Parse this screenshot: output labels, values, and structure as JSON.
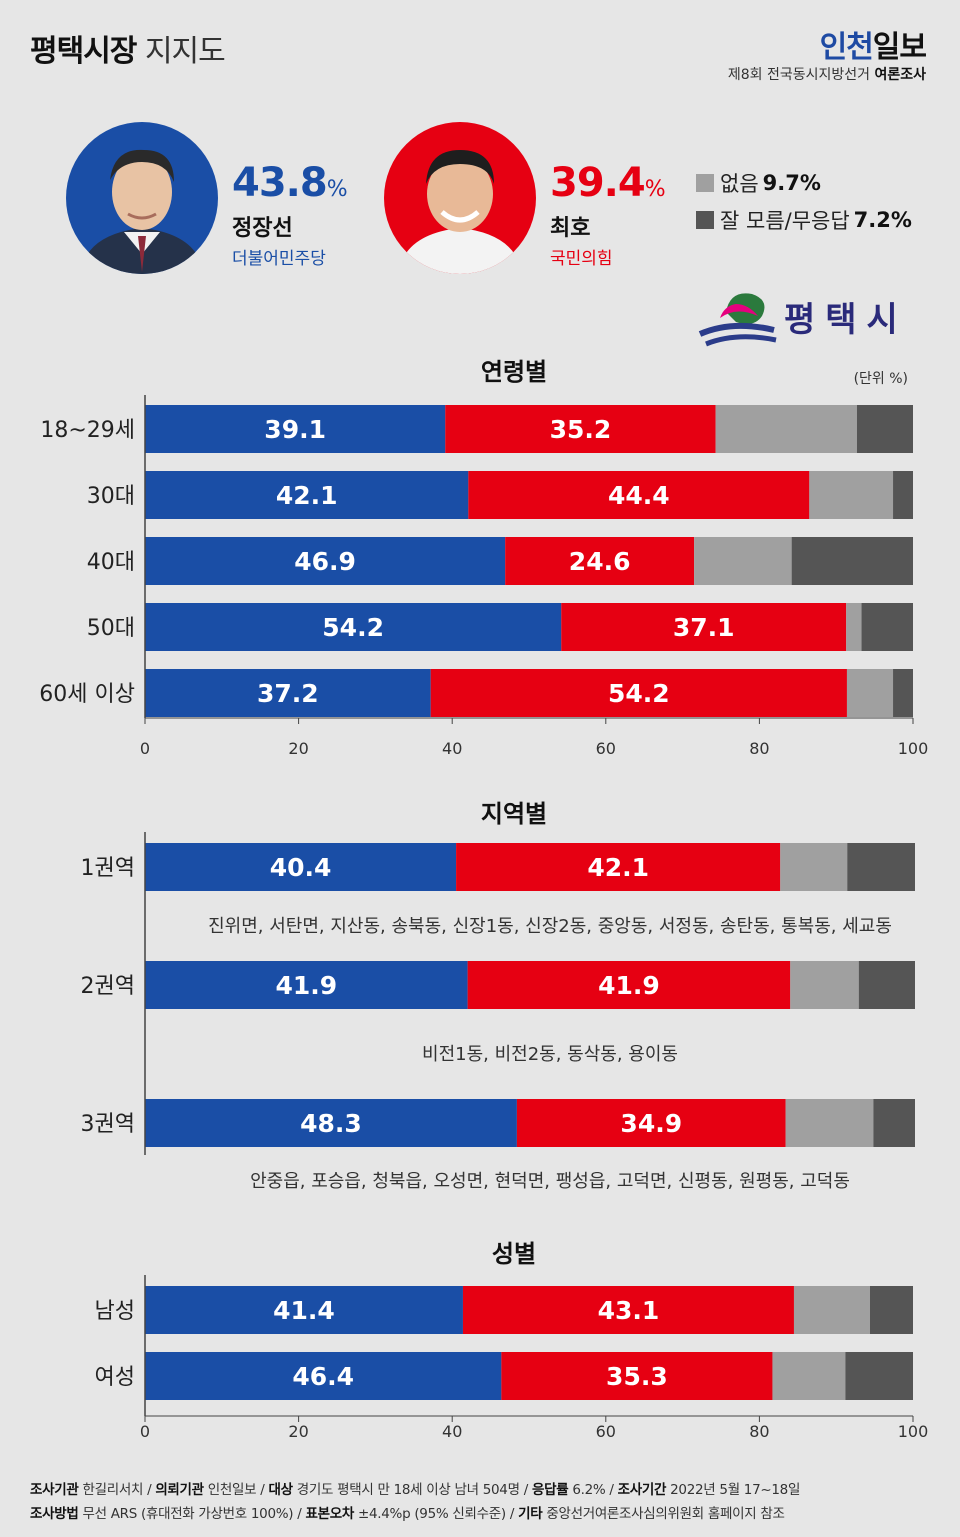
{
  "header": {
    "title_bold": "평택시장",
    "title_rest": "지지도",
    "brand_part1": "인천",
    "brand_part2": "일보",
    "survey_note": "제8회 전국동시지방선거",
    "survey_note_bold": "여론조사"
  },
  "candidates": [
    {
      "name": "정장선",
      "party": "더불어민주당",
      "pct": "43.8",
      "pct_unit": "%",
      "color": "#1a4ea6"
    },
    {
      "name": "최호",
      "party": "국민의힘",
      "pct": "39.4",
      "pct_unit": "%",
      "color": "#e60012"
    }
  ],
  "others": [
    {
      "label": "없음",
      "value": "9.7%",
      "color": "#a0a0a0"
    },
    {
      "label": "잘 모름/무응답",
      "value": "7.2%",
      "color": "#555555"
    }
  ],
  "logo_text": "평택시",
  "unit_label": "(단위 %)",
  "colors": {
    "blue": "#1a4ea6",
    "red": "#e60012",
    "gray": "#a0a0a0",
    "dark": "#555555"
  },
  "chart_data": [
    {
      "type": "bar",
      "stacked": true,
      "orientation": "horizontal",
      "title": "연령별",
      "categories": [
        "18~29세",
        "30대",
        "40대",
        "50대",
        "60세 이상"
      ],
      "series": [
        {
          "values": [
            39.1,
            42.1,
            46.9,
            54.2,
            37.2
          ]
        },
        {
          "values": [
            35.2,
            44.4,
            24.6,
            37.1,
            54.2
          ]
        },
        {
          "values": [
            18.4,
            10.9,
            12.7,
            2.0,
            6.0
          ]
        },
        {
          "values": [
            7.3,
            2.6,
            15.8,
            6.7,
            2.6
          ]
        }
      ],
      "xlim": [
        0,
        100
      ],
      "xticks": [
        0,
        20,
        40,
        60,
        80,
        100
      ]
    },
    {
      "type": "bar",
      "stacked": true,
      "orientation": "horizontal",
      "title": "지역별",
      "categories": [
        "1권역",
        "2권역",
        "3권역"
      ],
      "notes": [
        "진위면, 서탄면, 지산동, 송북동, 신장1동, 신장2동, 중앙동, 서정동, 송탄동, 통복동, 세교동",
        "비전1동, 비전2동, 동삭동, 용이동",
        "안중읍, 포승읍, 청북읍, 오성면, 현덕면, 팽성읍, 고덕면, 신평동, 원평동, 고덕동"
      ],
      "series": [
        {
          "values": [
            40.4,
            41.9,
            48.3
          ]
        },
        {
          "values": [
            42.1,
            41.9,
            34.9
          ]
        },
        {
          "values": [
            8.7,
            8.9,
            11.4
          ]
        },
        {
          "values": [
            8.8,
            7.3,
            5.4
          ]
        }
      ],
      "xlim": [
        0,
        100
      ]
    },
    {
      "type": "bar",
      "stacked": true,
      "orientation": "horizontal",
      "title": "성별",
      "categories": [
        "남성",
        "여성"
      ],
      "series": [
        {
          "values": [
            41.4,
            46.4
          ]
        },
        {
          "values": [
            43.1,
            35.3
          ]
        },
        {
          "values": [
            9.9,
            9.5
          ]
        },
        {
          "values": [
            5.6,
            8.8
          ]
        }
      ],
      "xlim": [
        0,
        100
      ],
      "xticks": [
        0,
        20,
        40,
        60,
        80,
        100
      ]
    }
  ],
  "footer": {
    "line1": [
      {
        "k": "조사기관",
        "v": "한길리서치"
      },
      {
        "k": "의뢰기관",
        "v": "인천일보"
      },
      {
        "k": "대상",
        "v": "경기도 평택시 만 18세 이상 남녀 504명"
      },
      {
        "k": "응답률",
        "v": "6.2%"
      },
      {
        "k": "조사기간",
        "v": "2022년 5월 17~18일"
      }
    ],
    "line2": [
      {
        "k": "조사방법",
        "v": "무선 ARS (휴대전화 가상번호 100%)"
      },
      {
        "k": "표본오차",
        "v": "±4.4%p (95% 신뢰수준)"
      },
      {
        "k": "기타",
        "v": "중앙선거여론조사심의위원회 홈페이지 참조"
      }
    ]
  }
}
